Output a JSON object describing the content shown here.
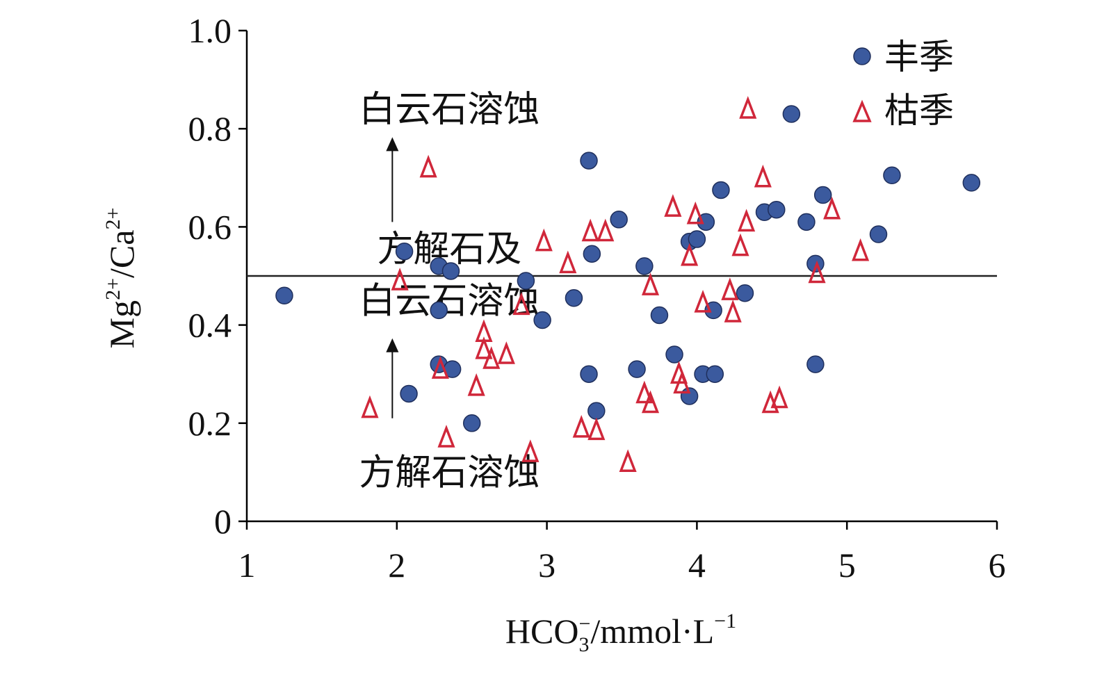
{
  "chart_data": {
    "type": "scatter",
    "xlabel": "HCO",
    "xlabel_sub": "3",
    "xlabel_sup": "−",
    "xlabel_rest": "/mmol·L",
    "xlabel_rest_sup": "−1",
    "ylabel_parts": [
      "Mg",
      "2+",
      "/Ca",
      "2+"
    ],
    "xlim": [
      1,
      6
    ],
    "ylim": [
      0,
      1.0
    ],
    "x_ticks": [
      1,
      2,
      3,
      4,
      5,
      6
    ],
    "x_tick_labels": [
      "1",
      "2",
      "3",
      "4",
      "5",
      "6"
    ],
    "y_ticks": [
      0,
      0.2,
      0.4,
      0.6,
      0.8,
      1.0
    ],
    "y_tick_labels": [
      "0",
      "0.2",
      "0.4",
      "0.6",
      "0.8",
      "1.0"
    ],
    "reference_line_y": 0.5,
    "legend_position": "top-right",
    "colors": {
      "wet_fill": "#3b5a9e",
      "wet_stroke": "#1f2f5c",
      "dry_stroke": "#d0273a",
      "axis": "#000000"
    },
    "annotations": [
      {
        "text": "白云石溶蚀",
        "x": 2.35,
        "y": 0.84
      },
      {
        "text": "方解石及",
        "x": 2.35,
        "y": 0.555
      },
      {
        "text": "白云石溶蚀",
        "x": 2.35,
        "y": 0.45
      },
      {
        "text": "方解石溶蚀",
        "x": 2.35,
        "y": 0.1
      }
    ],
    "arrows": [
      {
        "x": 1.97,
        "y_from": 0.21,
        "y_to": 0.37
      },
      {
        "x": 1.97,
        "y_from": 0.61,
        "y_to": 0.78
      }
    ],
    "series": [
      {
        "name": "丰季",
        "marker": "circle",
        "points": [
          [
            1.25,
            0.46
          ],
          [
            2.05,
            0.55
          ],
          [
            2.28,
            0.52
          ],
          [
            2.36,
            0.51
          ],
          [
            2.28,
            0.43
          ],
          [
            2.08,
            0.26
          ],
          [
            2.28,
            0.32
          ],
          [
            2.37,
            0.31
          ],
          [
            2.5,
            0.2
          ],
          [
            2.86,
            0.49
          ],
          [
            2.97,
            0.41
          ],
          [
            3.18,
            0.455
          ],
          [
            3.28,
            0.735
          ],
          [
            3.3,
            0.545
          ],
          [
            3.28,
            0.3
          ],
          [
            3.33,
            0.225
          ],
          [
            3.48,
            0.615
          ],
          [
            3.6,
            0.31
          ],
          [
            3.65,
            0.52
          ],
          [
            3.75,
            0.42
          ],
          [
            3.85,
            0.34
          ],
          [
            3.95,
            0.57
          ],
          [
            4.0,
            0.575
          ],
          [
            4.06,
            0.61
          ],
          [
            4.04,
            0.3
          ],
          [
            4.12,
            0.3
          ],
          [
            4.11,
            0.43
          ],
          [
            4.16,
            0.675
          ],
          [
            3.95,
            0.255
          ],
          [
            4.32,
            0.465
          ],
          [
            4.45,
            0.63
          ],
          [
            4.53,
            0.635
          ],
          [
            4.63,
            0.83
          ],
          [
            4.73,
            0.61
          ],
          [
            4.79,
            0.525
          ],
          [
            4.84,
            0.665
          ],
          [
            4.79,
            0.32
          ],
          [
            5.21,
            0.585
          ],
          [
            5.3,
            0.705
          ],
          [
            5.83,
            0.69
          ]
        ]
      },
      {
        "name": "枯季",
        "marker": "triangle",
        "points": [
          [
            1.82,
            0.23
          ],
          [
            2.02,
            0.49
          ],
          [
            2.21,
            0.72
          ],
          [
            2.29,
            0.31
          ],
          [
            2.33,
            0.17
          ],
          [
            2.53,
            0.275
          ],
          [
            2.58,
            0.385
          ],
          [
            2.58,
            0.35
          ],
          [
            2.63,
            0.33
          ],
          [
            2.73,
            0.34
          ],
          [
            2.83,
            0.44
          ],
          [
            2.89,
            0.14
          ],
          [
            2.98,
            0.57
          ],
          [
            3.14,
            0.525
          ],
          [
            3.23,
            0.19
          ],
          [
            3.29,
            0.59
          ],
          [
            3.33,
            0.185
          ],
          [
            3.39,
            0.59
          ],
          [
            3.54,
            0.12
          ],
          [
            3.65,
            0.26
          ],
          [
            3.69,
            0.48
          ],
          [
            3.69,
            0.24
          ],
          [
            3.84,
            0.64
          ],
          [
            3.88,
            0.3
          ],
          [
            3.9,
            0.28
          ],
          [
            3.95,
            0.54
          ],
          [
            3.99,
            0.625
          ],
          [
            4.04,
            0.445
          ],
          [
            4.22,
            0.47
          ],
          [
            4.24,
            0.425
          ],
          [
            4.29,
            0.56
          ],
          [
            4.33,
            0.61
          ],
          [
            4.34,
            0.84
          ],
          [
            4.44,
            0.7
          ],
          [
            4.49,
            0.24
          ],
          [
            4.55,
            0.25
          ],
          [
            4.8,
            0.505
          ],
          [
            4.9,
            0.635
          ],
          [
            5.09,
            0.55
          ]
        ]
      }
    ]
  }
}
